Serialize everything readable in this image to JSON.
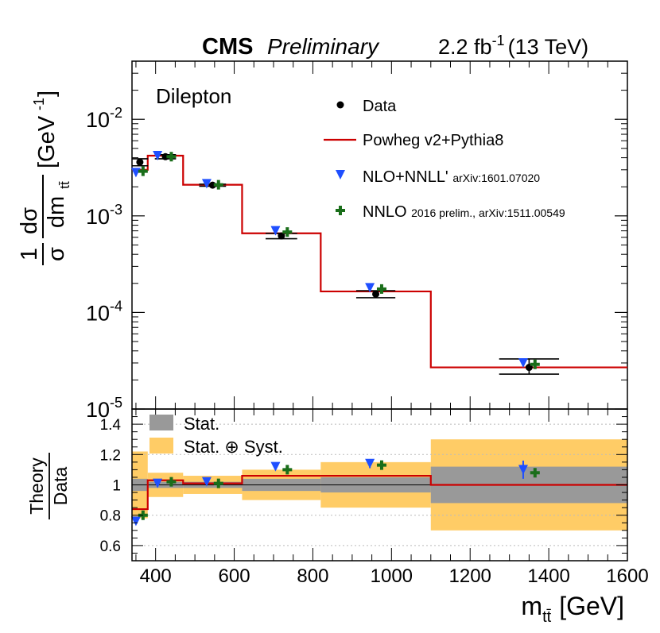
{
  "header": {
    "experiment": "CMS",
    "status": "Preliminary",
    "luminosity": "2.2 fb",
    "lumi_exponent": "-1",
    "energy": "(13 TeV)"
  },
  "chart_data": [
    {
      "type": "line",
      "panel": "main",
      "channel": "Dilepton",
      "ylabel": "1/σ dσ/dm_tt̄ [GeV^-1]",
      "yscale": "log",
      "ylim": [
        1e-05,
        0.04
      ],
      "xlim": [
        340,
        1600
      ],
      "y_tick_labels": [
        {
          "value": 0.01,
          "base": "10",
          "exp": "-2"
        },
        {
          "value": 0.001,
          "base": "10",
          "exp": "-3"
        },
        {
          "value": 0.0001,
          "base": "10",
          "exp": "-4"
        },
        {
          "value": 1e-05,
          "base": "10",
          "exp": "-5"
        }
      ],
      "bin_edges": [
        340,
        380,
        470,
        620,
        820,
        1100,
        1600
      ],
      "series": [
        {
          "name": "Data",
          "x": [
            360,
            425,
            545,
            720,
            960,
            1350
          ],
          "values": [
            0.0036,
            0.0041,
            0.00208,
            0.00062,
            0.000155,
            2.7e-05
          ],
          "err_low": [
            0.0033,
            0.0039,
            0.00203,
            0.00058,
            0.000142,
            2.3e-05
          ],
          "err_high": [
            0.0039,
            0.0043,
            0.00213,
            0.00066,
            0.000168,
            3.3e-05
          ],
          "color": "#000000"
        },
        {
          "name": "Powheg v2+Pythia8",
          "values": [
            0.003,
            0.0042,
            0.0021,
            0.00066,
            0.000165,
            2.7e-05
          ],
          "color": "#cc0000"
        },
        {
          "name": "NLO+NNLL'",
          "legend_ref": "arXiv:1601.07020",
          "x": [
            350,
            405,
            530,
            705,
            945,
            1335
          ],
          "values": [
            0.0028,
            0.0042,
            0.00215,
            0.0007,
            0.00018,
            3e-05
          ],
          "color": "#1f4fff"
        },
        {
          "name": "NNLO",
          "legend_ref": "2016 prelim., arXiv:1511.00549",
          "x": [
            368,
            440,
            560,
            735,
            975,
            1365
          ],
          "values": [
            0.0029,
            0.0041,
            0.0021,
            0.00068,
            0.000175,
            2.9e-05
          ],
          "color": "#1a6e1a"
        }
      ]
    },
    {
      "type": "line",
      "panel": "ratio",
      "ylabel_num": "Theory",
      "ylabel_den": "Data",
      "ylim": [
        0.5,
        1.5
      ],
      "y_ticks": [
        "0.6",
        "0.8",
        "1",
        "1.2",
        "1.4"
      ],
      "x_ticks": [
        "400",
        "600",
        "800",
        "1000",
        "1200",
        "1400",
        "1600"
      ],
      "xlabel": "m",
      "xlabel_sub": "tt̄",
      "xunit": "[GeV]",
      "bin_edges": [
        340,
        380,
        470,
        620,
        820,
        1100,
        1600
      ],
      "legend": [
        {
          "label": "Stat.",
          "color": "#999999"
        },
        {
          "label": "Stat. ⊕ Syst.",
          "color": "#ffcc66"
        }
      ],
      "stat_band": [
        0.04,
        0.02,
        0.02,
        0.04,
        0.05,
        0.12
      ],
      "total_band": [
        0.22,
        0.08,
        0.06,
        0.1,
        0.15,
        0.3
      ],
      "series": [
        {
          "name": "Powheg v2+Pythia8",
          "values": [
            0.84,
            1.03,
            1.01,
            1.06,
            1.06,
            1.0
          ],
          "color": "#cc0000"
        },
        {
          "name": "NLO+NNLL'",
          "x": [
            350,
            405,
            530,
            705,
            945,
            1335
          ],
          "values": [
            0.76,
            1.01,
            1.02,
            1.12,
            1.14,
            1.1
          ],
          "err": [
            0.0,
            0.0,
            0.0,
            0.0,
            0.03,
            0.06
          ],
          "color": "#1f4fff"
        },
        {
          "name": "NNLO",
          "x": [
            368,
            440,
            560,
            735,
            975,
            1365
          ],
          "values": [
            0.8,
            1.02,
            1.01,
            1.1,
            1.13,
            1.08
          ],
          "color": "#1a6e1a"
        }
      ]
    }
  ]
}
